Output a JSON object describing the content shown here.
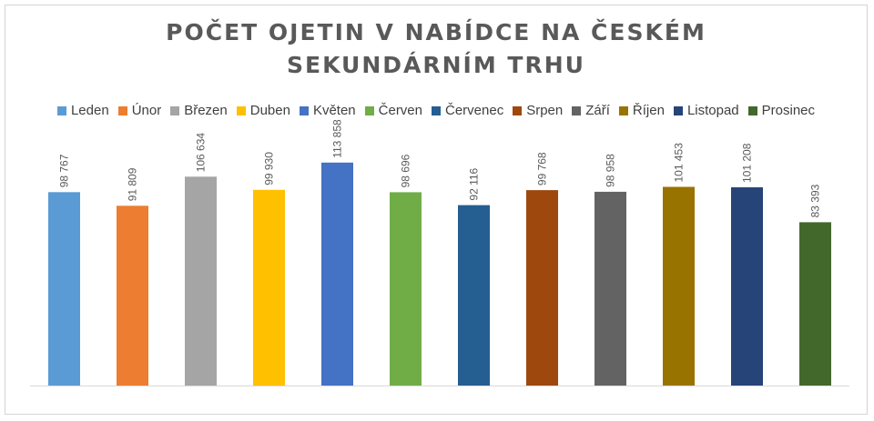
{
  "chart_data": {
    "type": "bar",
    "title_line1": "POČET OJETIN V NABÍDCE NA ČESKÉM",
    "title_line2": "SEKUNDÁRNÍM TRHU",
    "legend_position": "top",
    "grid": false,
    "ylim": [
      0,
      130000
    ],
    "series": [
      {
        "name": "Leden",
        "value": 98767,
        "label": "98 767",
        "color": "#5B9BD5"
      },
      {
        "name": "Únor",
        "value": 91809,
        "label": "91 809",
        "color": "#ED7D31"
      },
      {
        "name": "Březen",
        "value": 106634,
        "label": "106 634",
        "color": "#A5A5A5"
      },
      {
        "name": "Duben",
        "value": 99930,
        "label": "99 930",
        "color": "#FFC000"
      },
      {
        "name": "Květen",
        "value": 113858,
        "label": "113 858",
        "color": "#4472C4"
      },
      {
        "name": "Červen",
        "value": 98696,
        "label": "98 696",
        "color": "#70AD47"
      },
      {
        "name": "Červenec",
        "value": 92116,
        "label": "92 116",
        "color": "#255E91"
      },
      {
        "name": "Srpen",
        "value": 99768,
        "label": "99 768",
        "color": "#9E480E"
      },
      {
        "name": "Září",
        "value": 98958,
        "label": "98 958",
        "color": "#636363"
      },
      {
        "name": "Říjen",
        "value": 101453,
        "label": "101 453",
        "color": "#997300"
      },
      {
        "name": "Listopad",
        "value": 101208,
        "label": "101 208",
        "color": "#264478"
      },
      {
        "name": "Prosinec",
        "value": 83393,
        "label": "83 393",
        "color": "#43682B"
      }
    ]
  }
}
